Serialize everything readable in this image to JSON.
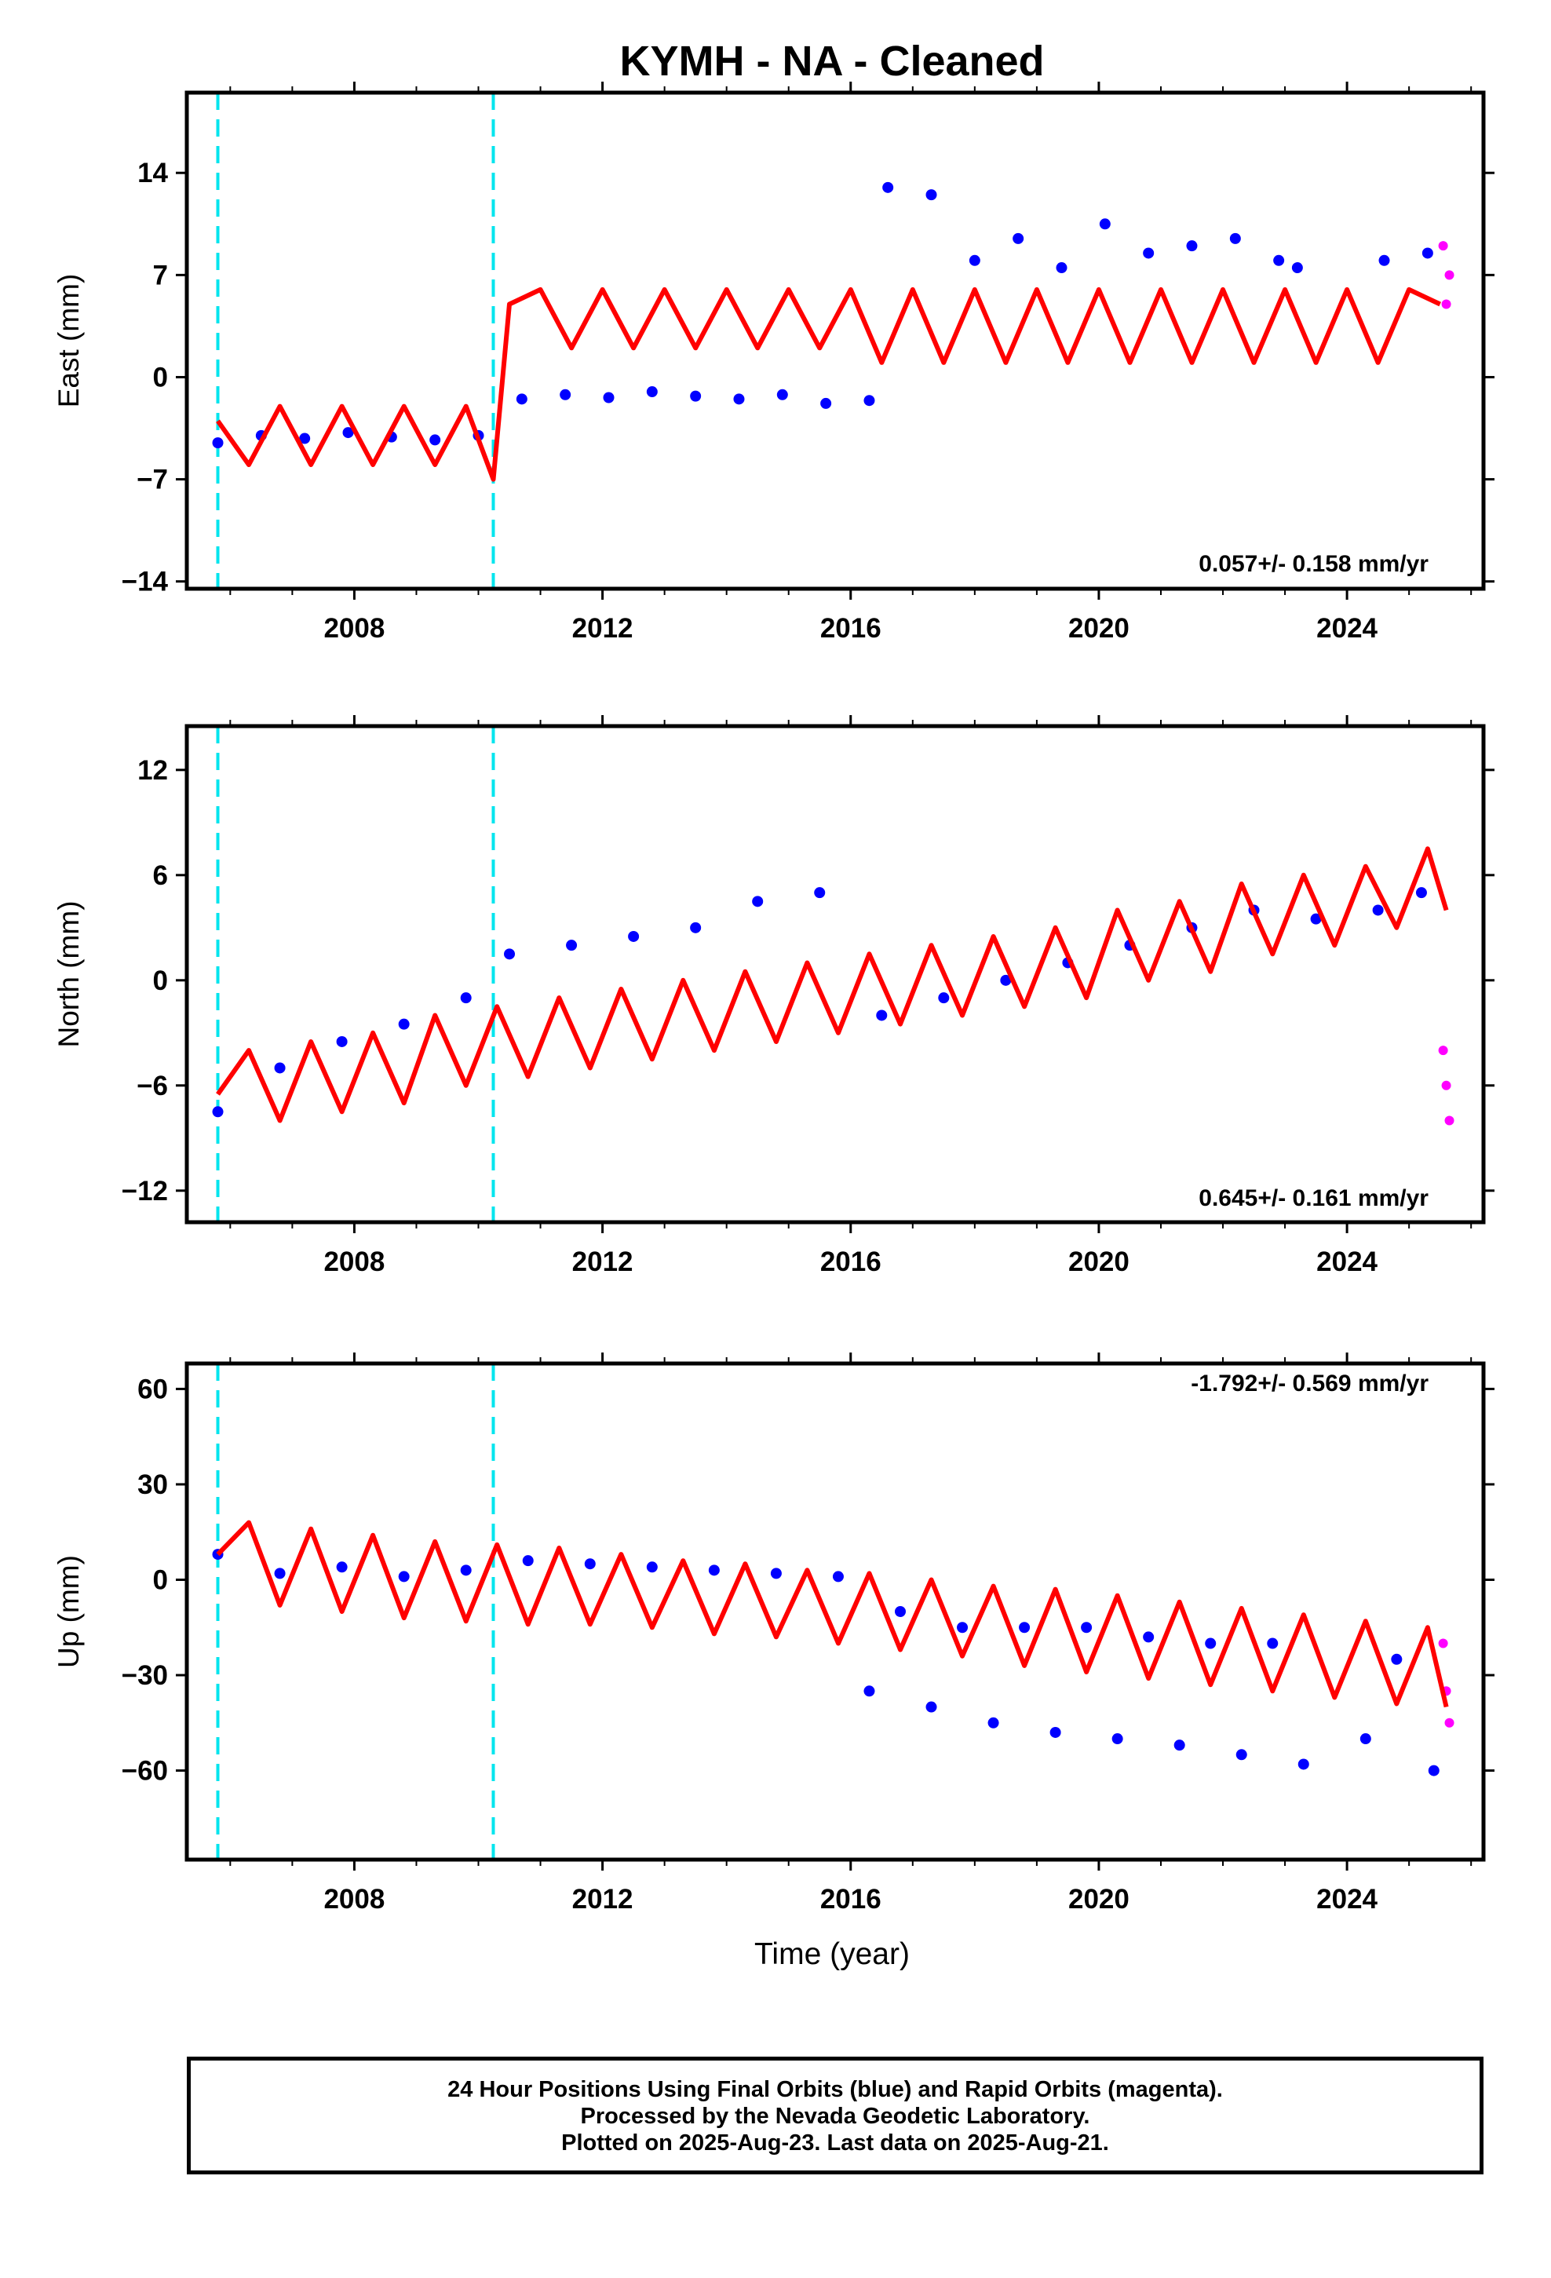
{
  "chart_data": {
    "type": "scatter",
    "title": "KYMH  - NA - Cleaned",
    "xlabel": "Time (year)",
    "xlim": [
      2005.3,
      2026.2
    ],
    "x_ticks": [
      "2008",
      "2012",
      "2016",
      "2020",
      "2024"
    ],
    "x_tick_values": [
      2008,
      2012,
      2016,
      2020,
      2024
    ],
    "grid": false,
    "colors": {
      "final_orbits": "#0000ff",
      "rapid_orbits": "#ff00ff",
      "model": "#ff0000",
      "offsets": "#00e5ee"
    },
    "equipment_offsets": [
      2005.8,
      2010.24
    ],
    "panels": [
      {
        "ylabel": "East (mm)",
        "ylim": [
          -14.5,
          19.5
        ],
        "y_ticks": [
          "14",
          "7",
          "0",
          "-7",
          "-14"
        ],
        "y_tick_values": [
          14,
          7,
          0,
          -7,
          -14
        ],
        "rate": "0.057+/- 0.158 mm/yr",
        "series": [
          {
            "x": [
              2005.8,
              2006.5,
              2007.2,
              2007.9,
              2008.6,
              2009.3,
              2010.0,
              2010.7,
              2011.4,
              2012.1,
              2012.8,
              2013.5,
              2014.2,
              2014.9,
              2015.6,
              2016.3,
              2016.6,
              2017.3,
              2018.0,
              2018.7,
              2019.4,
              2020.1,
              2020.8,
              2021.5,
              2022.2,
              2022.9,
              2023.2,
              2024.6,
              2025.3
            ],
            "y": [
              -4.5,
              -4.0,
              -4.2,
              -3.8,
              -4.1,
              -4.3,
              -4.0,
              -1.5,
              -1.2,
              -1.4,
              -1.0,
              -1.3,
              -1.5,
              -1.2,
              -1.8,
              -1.6,
              13.0,
              12.5,
              8.0,
              9.5,
              7.5,
              10.5,
              8.5,
              9.0,
              9.5,
              8.0,
              7.5,
              8.0,
              8.5
            ]
          },
          {
            "x": [
              2025.55,
              2025.6,
              2025.65
            ],
            "y": [
              9.0,
              5.0,
              7.0
            ]
          },
          {
            "x": [
              2005.8,
              2006.3,
              2006.8,
              2007.3,
              2007.8,
              2008.3,
              2008.8,
              2009.3,
              2009.8,
              2010.24,
              2010.5,
              2011.0,
              2011.5,
              2012.0,
              2012.5,
              2013.0,
              2013.5,
              2014.0,
              2014.5,
              2015.0,
              2015.5,
              2016.0,
              2016.5,
              2017.0,
              2017.5,
              2018.0,
              2018.5,
              2019.0,
              2019.5,
              2020.0,
              2020.5,
              2021.0,
              2021.5,
              2022.0,
              2022.5,
              2023.0,
              2023.5,
              2024.0,
              2024.5,
              2025.0,
              2025.5
            ],
            "y": [
              -3,
              -6,
              -2,
              -6,
              -2,
              -6,
              -2,
              -6,
              -2,
              -7,
              5,
              6,
              2,
              6,
              2,
              6,
              2,
              6,
              2,
              6,
              2,
              6,
              1,
              6,
              1,
              6,
              1,
              6,
              1,
              6,
              1,
              6,
              1,
              6,
              1,
              6,
              1,
              6,
              1,
              6,
              5
            ]
          }
        ]
      },
      {
        "ylabel": "North (mm)",
        "ylim": [
          -13.8,
          14.5
        ],
        "y_ticks": [
          "12",
          "6",
          "0",
          "-6",
          "-12"
        ],
        "y_tick_values": [
          12,
          6,
          0,
          -6,
          -12
        ],
        "rate": "0.645+/- 0.161 mm/yr",
        "series": [
          {
            "x": [
              2005.8,
              2006.8,
              2007.8,
              2008.8,
              2009.8,
              2010.5,
              2011.5,
              2012.5,
              2013.5,
              2014.5,
              2015.5,
              2016.5,
              2017.5,
              2018.5,
              2019.5,
              2020.5,
              2021.5,
              2022.5,
              2023.5,
              2024.5,
              2025.2
            ],
            "y": [
              -7.5,
              -5.0,
              -3.5,
              -2.5,
              -1.0,
              1.5,
              2.0,
              2.5,
              3.0,
              4.5,
              5.0,
              -2.0,
              -1.0,
              0.0,
              1.0,
              2.0,
              3.0,
              4.0,
              3.5,
              4.0,
              5.0
            ]
          },
          {
            "x": [
              2025.55,
              2025.6,
              2025.65
            ],
            "y": [
              -4.0,
              -6.0,
              -8.0
            ]
          },
          {
            "x": [
              2005.8,
              2006.3,
              2006.8,
              2007.3,
              2007.8,
              2008.3,
              2008.8,
              2009.3,
              2009.8,
              2010.3,
              2010.8,
              2011.3,
              2011.8,
              2012.3,
              2012.8,
              2013.3,
              2013.8,
              2014.3,
              2014.8,
              2015.3,
              2015.8,
              2016.3,
              2016.8,
              2017.3,
              2017.8,
              2018.3,
              2018.8,
              2019.3,
              2019.8,
              2020.3,
              2020.8,
              2021.3,
              2021.8,
              2022.3,
              2022.8,
              2023.3,
              2023.8,
              2024.3,
              2024.8,
              2025.3,
              2025.6
            ],
            "y": [
              -6.5,
              -4.0,
              -8.0,
              -3.5,
              -7.5,
              -3.0,
              -7.0,
              -2.0,
              -6.0,
              -1.5,
              -5.5,
              -1.0,
              -5.0,
              -0.5,
              -4.5,
              0.0,
              -4.0,
              0.5,
              -3.5,
              1.0,
              -3.0,
              1.5,
              -2.5,
              2.0,
              -2.0,
              2.5,
              -1.5,
              3.0,
              -1.0,
              4.0,
              0.0,
              4.5,
              0.5,
              5.5,
              1.5,
              6.0,
              2.0,
              6.5,
              3.0,
              7.5,
              4.0
            ]
          }
        ]
      },
      {
        "ylabel": "Up (mm)",
        "ylim": [
          -88,
          68
        ],
        "y_ticks": [
          "60",
          "30",
          "0",
          "-30",
          "-60"
        ],
        "y_tick_values": [
          60,
          30,
          0,
          -30,
          -60
        ],
        "rate": "-1.792+/- 0.569 mm/yr",
        "series": [
          {
            "x": [
              2005.8,
              2006.8,
              2007.8,
              2008.8,
              2009.8,
              2010.8,
              2011.8,
              2012.8,
              2013.8,
              2014.8,
              2015.8,
              2016.3,
              2016.8,
              2017.3,
              2017.8,
              2018.3,
              2018.8,
              2019.3,
              2019.8,
              2020.3,
              2020.8,
              2021.3,
              2021.8,
              2022.3,
              2022.8,
              2023.3,
              2024.3,
              2024.8,
              2025.4
            ],
            "y": [
              8,
              2,
              4,
              1,
              3,
              6,
              5,
              4,
              3,
              2,
              1,
              -35,
              -10,
              -40,
              -15,
              -45,
              -15,
              -48,
              -15,
              -50,
              -18,
              -52,
              -20,
              -55,
              -20,
              -58,
              -50,
              -25,
              -60
            ]
          },
          {
            "x": [
              2025.55,
              2025.6,
              2025.65
            ],
            "y": [
              -20,
              -35,
              -45
            ]
          },
          {
            "x": [
              2005.8,
              2006.3,
              2006.8,
              2007.3,
              2007.8,
              2008.3,
              2008.8,
              2009.3,
              2009.8,
              2010.3,
              2010.8,
              2011.3,
              2011.8,
              2012.3,
              2012.8,
              2013.3,
              2013.8,
              2014.3,
              2014.8,
              2015.3,
              2015.8,
              2016.3,
              2016.8,
              2017.3,
              2017.8,
              2018.3,
              2018.8,
              2019.3,
              2019.8,
              2020.3,
              2020.8,
              2021.3,
              2021.8,
              2022.3,
              2022.8,
              2023.3,
              2023.8,
              2024.3,
              2024.8,
              2025.3,
              2025.6
            ],
            "y": [
              8,
              18,
              -8,
              16,
              -10,
              14,
              -12,
              12,
              -13,
              11,
              -14,
              10,
              -14,
              8,
              -15,
              6,
              -17,
              5,
              -18,
              3,
              -20,
              2,
              -22,
              0,
              -24,
              -2,
              -27,
              -3,
              -29,
              -5,
              -31,
              -7,
              -33,
              -9,
              -35,
              -11,
              -37,
              -13,
              -39,
              -15,
              -40
            ]
          }
        ]
      }
    ]
  },
  "footer": {
    "line1": "24 Hour Positions Using Final Orbits (blue) and Rapid Orbits (magenta).",
    "line2": "Processed by the Nevada Geodetic Laboratory.",
    "line3": "Plotted on 2025-Aug-23. Last data on 2025-Aug-21."
  }
}
